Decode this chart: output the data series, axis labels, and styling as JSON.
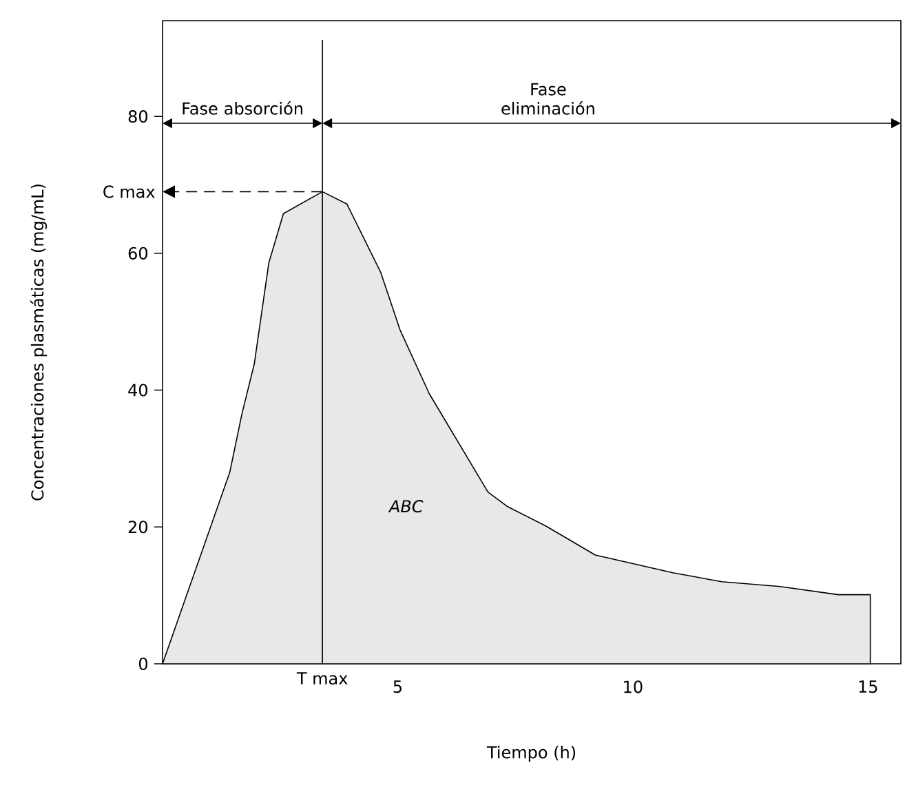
{
  "chart_data": {
    "type": "area",
    "xlabel": "Tiempo (h)",
    "ylabel": "Concentraciones plasmáticas (mg/mL)",
    "x": [
      0,
      1.43,
      1.69,
      1.95,
      2.26,
      2.57,
      3.4,
      3.92,
      4.64,
      5.05,
      5.67,
      6.92,
      7.33,
      8.16,
      9.2,
      10.85,
      11.89,
      13.13,
      14.37,
      15.05
    ],
    "values": [
      0,
      28,
      36.6,
      43.8,
      58.6,
      65.8,
      69,
      67.2,
      57.2,
      48.8,
      39.5,
      25.1,
      23,
      20.1,
      15.9,
      13.3,
      12,
      11.3,
      10.1,
      10.1
    ],
    "color": "#000000",
    "xlim": [
      0,
      15.7
    ],
    "ylim": [
      0,
      94
    ],
    "xticks": [
      5,
      10,
      15
    ],
    "yticks": [
      0,
      20,
      40,
      60,
      80
    ],
    "ref_lines": [
      {
        "axis": "x",
        "value": 3.4,
        "label": "T max"
      },
      {
        "axis": "y",
        "value": 69,
        "label": "C max",
        "line_style": "dashed"
      }
    ],
    "annotations": [
      "Fase absorción",
      "Fase eliminación",
      "ABC"
    ]
  }
}
